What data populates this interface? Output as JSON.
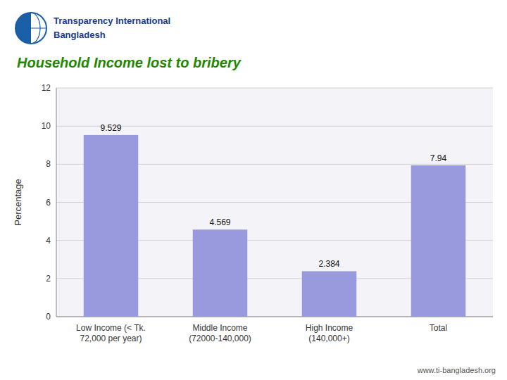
{
  "chart_data": {
    "type": "bar",
    "title": "Household Income lost to bribery",
    "annotations": [
      "Transparency International",
      "Bangladesh",
      "www.ti-bangladesh.org"
    ],
    "categories": [
      "Low Income (< Tk.\n72,000 per year)",
      "Middle Income\n(72000-140,000)",
      "High Income\n(140,000+)",
      "Total"
    ],
    "values": [
      9.529,
      4.569,
      2.384,
      7.94
    ],
    "color": "#9999dd",
    "ylabel": "Percentage",
    "ylim": [
      0,
      12
    ],
    "yticks": [
      0,
      2,
      4,
      6,
      8,
      10,
      12
    ],
    "grid": true,
    "data_labels": true
  }
}
